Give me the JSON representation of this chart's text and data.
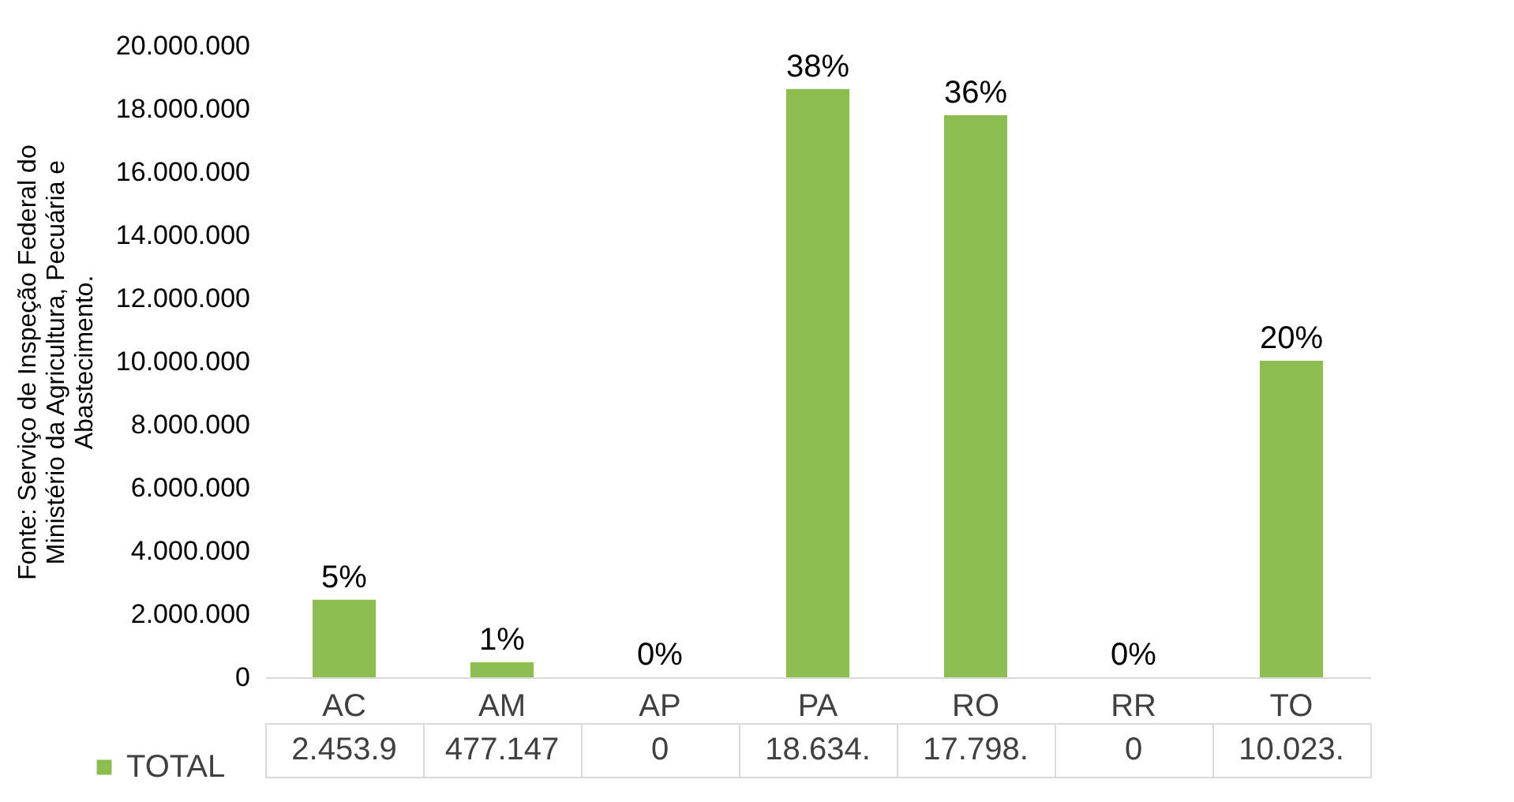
{
  "chart_data": {
    "type": "bar",
    "ylabel": "Fonte: Serviço de Inspeção Federal do Ministério da Agricultura, Pecuária e Abastecimento.",
    "categories": [
      "AC",
      "AM",
      "AP",
      "PA",
      "RO",
      "RR",
      "TO"
    ],
    "series": [
      {
        "name": "TOTAL",
        "color": "#8bbd4f",
        "values": [
          2454000,
          477147,
          0,
          18634000,
          17798000,
          0,
          10023000
        ]
      }
    ],
    "ylim": [
      0,
      20000000
    ],
    "yticks": [
      0,
      {
        "value": 2000000,
        "label": "2.000.000"
      },
      {
        "value": 4000000,
        "label": "4.000.000"
      },
      {
        "value": 6000000,
        "label": "6.000.000"
      },
      {
        "value": 8000000,
        "label": "8.000.000"
      },
      {
        "value": 10000000,
        "label": "10.000.000"
      },
      {
        "value": 12000000,
        "label": "12.000.000"
      },
      {
        "value": 14000000,
        "label": "14.000.000"
      },
      {
        "value": 16000000,
        "label": "16.000.000"
      },
      {
        "value": 18000000,
        "label": "18.000.000"
      },
      {
        "value": 20000000,
        "label": "20.000.000"
      }
    ],
    "legend": "bottom left",
    "annotations": [
      "2.453.9",
      "477.147",
      "0",
      "18.634.",
      "17.798.",
      "0",
      "10.023.",
      {
        "text": "5%",
        "x": "AC",
        "y": 2454000
      },
      {
        "text": "1%",
        "x": "AM",
        "y": 477147
      },
      {
        "text": "0%",
        "x": "AP",
        "y": 0
      },
      {
        "text": "38%",
        "x": "PA",
        "y": 18634000
      },
      {
        "text": "36%",
        "x": "RO",
        "y": 17798000
      },
      {
        "text": "0%",
        "x": "RR",
        "y": 0
      },
      {
        "text": "20%",
        "x": "TO",
        "y": 10023000
      }
    ]
  }
}
